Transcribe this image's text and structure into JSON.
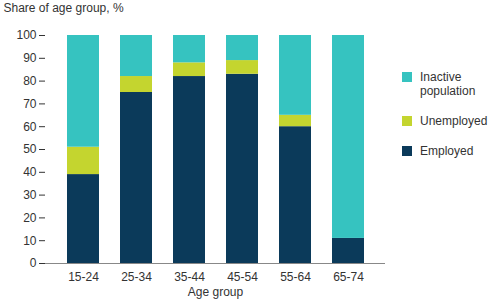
{
  "chart_data": {
    "type": "bar",
    "stacked": true,
    "xlabel": "Age group",
    "ylabel": "Share of age group, %",
    "categories": [
      "15-24",
      "25-34",
      "35-44",
      "45-54",
      "55-64",
      "65-74"
    ],
    "series": [
      {
        "name": "Employed",
        "color": "#0b3a5a",
        "values": [
          39,
          75,
          82,
          83,
          60,
          11
        ]
      },
      {
        "name": "Unemployed",
        "color": "#c4d52f",
        "values": [
          12,
          7,
          6,
          6,
          5,
          0
        ]
      },
      {
        "name": "Inactive population",
        "color": "#36c3c0",
        "values": [
          49,
          18,
          12,
          11,
          35,
          89
        ]
      }
    ],
    "ylim": [
      0,
      100
    ],
    "yticks": [
      0,
      10,
      20,
      30,
      40,
      50,
      60,
      70,
      80,
      90,
      100
    ],
    "grid": false,
    "legend": "right"
  }
}
